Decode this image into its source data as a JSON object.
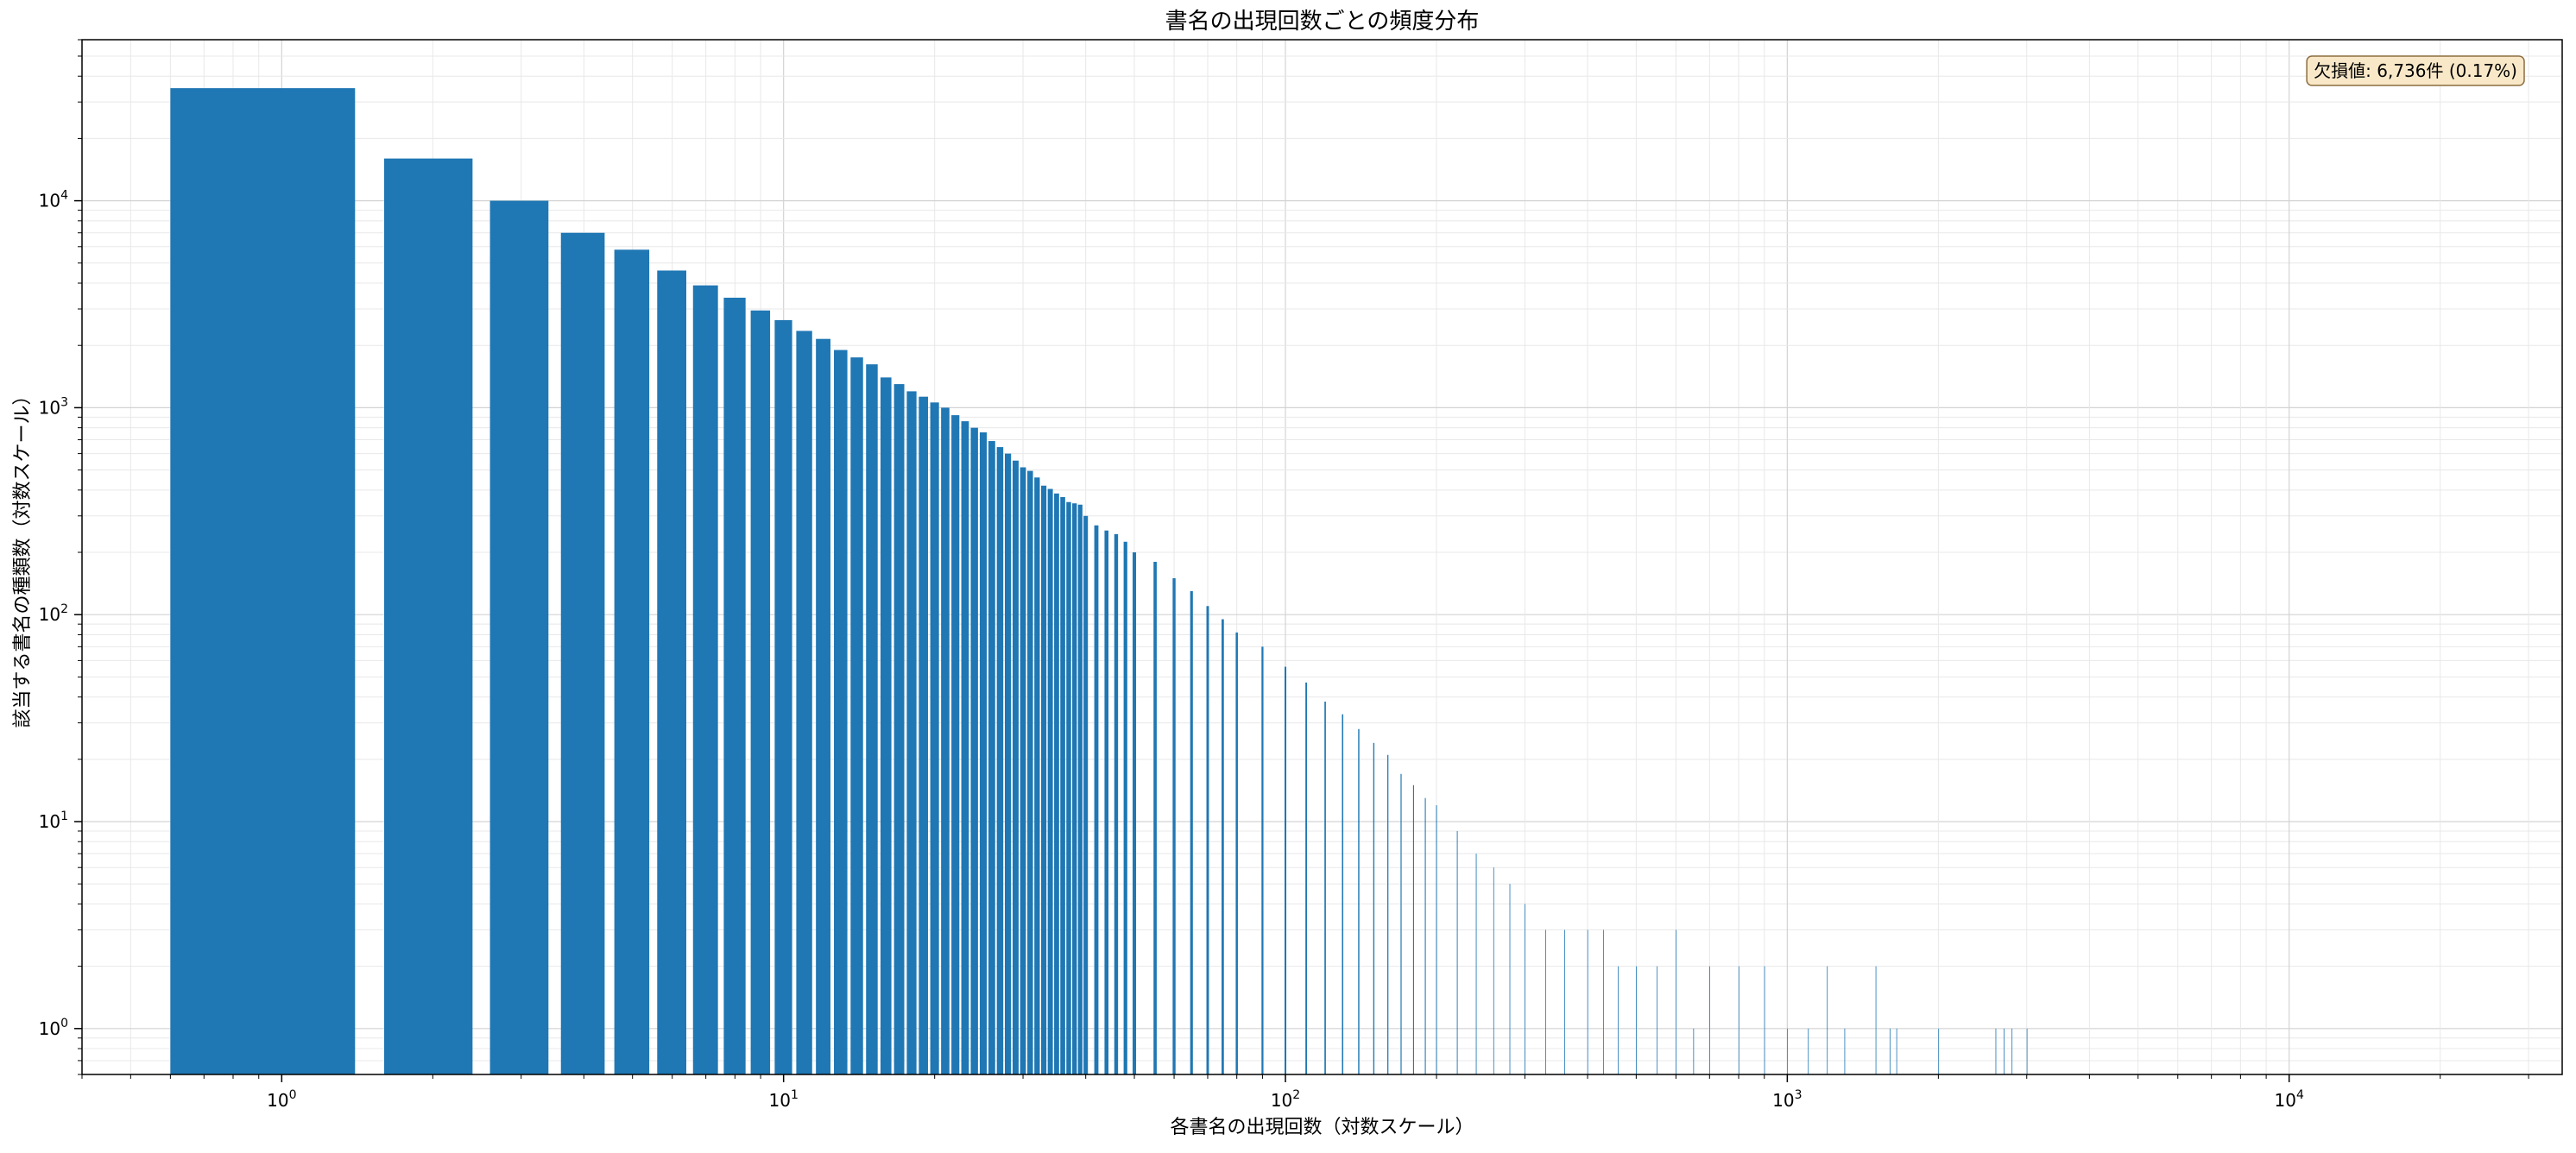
{
  "chart_data": {
    "type": "bar",
    "title": "書名の出現回数ごとの頻度分布",
    "xlabel": "各書名の出現回数（対数スケール）",
    "ylabel": "該当する書名の種類数（対数スケール）",
    "x_scale": "log",
    "y_scale": "log",
    "xlim": [
      0.4,
      35000
    ],
    "ylim": [
      0.6,
      60000
    ],
    "x_ticks": [
      {
        "base": "10",
        "exp": "0"
      },
      {
        "base": "10",
        "exp": "1"
      },
      {
        "base": "10",
        "exp": "2"
      },
      {
        "base": "10",
        "exp": "3"
      },
      {
        "base": "10",
        "exp": "4"
      }
    ],
    "y_ticks": [
      {
        "base": "10",
        "exp": "0"
      },
      {
        "base": "10",
        "exp": "1"
      },
      {
        "base": "10",
        "exp": "2"
      },
      {
        "base": "10",
        "exp": "3"
      },
      {
        "base": "10",
        "exp": "4"
      }
    ],
    "grid": true,
    "bar_color": "#1f77b4",
    "annotation": {
      "text": "欠損値: 6,736件 (0.17%)",
      "position": "top-right",
      "background": "#f8e8c8",
      "border": "#8c6d3f"
    },
    "x": [
      1,
      2,
      3,
      4,
      5,
      6,
      7,
      8,
      9,
      10,
      11,
      12,
      13,
      14,
      15,
      16,
      17,
      18,
      19,
      20,
      21,
      22,
      23,
      24,
      25,
      26,
      27,
      28,
      29,
      30,
      31,
      32,
      33,
      34,
      35,
      36,
      37,
      38,
      39,
      40,
      42,
      44,
      46,
      48,
      50,
      55,
      60,
      65,
      70,
      75,
      80,
      90,
      100,
      110,
      120,
      130,
      140,
      150,
      160,
      170,
      180,
      190,
      200,
      220,
      240,
      260,
      280,
      300,
      330,
      360,
      400,
      430,
      460,
      500,
      550,
      600,
      650,
      700,
      800,
      900,
      1000,
      1100,
      1200,
      1300,
      1500,
      1600,
      1650,
      2000,
      2600,
      2700,
      2800,
      3000
    ],
    "values": [
      35000,
      16000,
      10000,
      7000,
      5800,
      4600,
      3900,
      3400,
      2950,
      2650,
      2350,
      2150,
      1900,
      1750,
      1620,
      1400,
      1300,
      1200,
      1130,
      1060,
      1000,
      920,
      860,
      800,
      760,
      690,
      645,
      600,
      555,
      515,
      495,
      460,
      420,
      405,
      385,
      370,
      350,
      345,
      340,
      300,
      270,
      255,
      245,
      225,
      200,
      180,
      150,
      130,
      110,
      95,
      82,
      70,
      56,
      47,
      38,
      33,
      28,
      24,
      21,
      17,
      15,
      13,
      12,
      9,
      7,
      6,
      5,
      4,
      3,
      3,
      3,
      3,
      2,
      2,
      2,
      3,
      1,
      2,
      2,
      2,
      1,
      1,
      2,
      1,
      2,
      1,
      1,
      1,
      1,
      1,
      1,
      1
    ]
  }
}
